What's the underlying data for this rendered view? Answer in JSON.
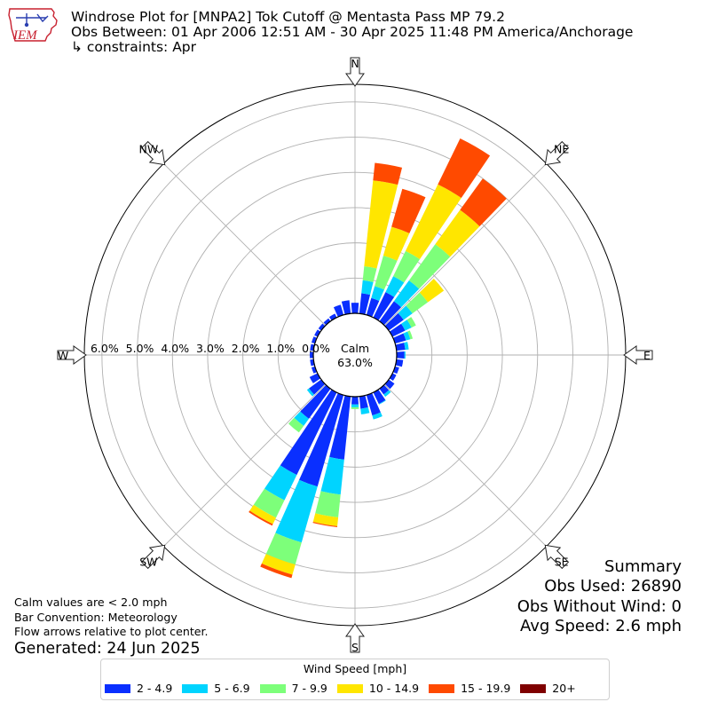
{
  "header": {
    "title": "Windrose Plot for [MNPA2] Tok Cutoff @ Mentasta Pass MP 79.2",
    "obs_between": "Obs Between: 01 Apr 2006 12:51 AM - 30 Apr 2025 11:48 PM America/Anchorage",
    "constraints": "↳ constraints: Apr"
  },
  "logo": {
    "text": "IEM",
    "icon": "iowa-state-map-logo"
  },
  "notes": {
    "line1": "Calm values are < 2.0 mph",
    "line2": "Bar Convention: Meteorology",
    "line3": "Flow arrows relative to plot center.",
    "generated": "Generated: 24 Jun 2025"
  },
  "summary": {
    "heading": "Summary",
    "obs_used": "Obs Used: 26890",
    "obs_without_wind": "Obs Without Wind: 0",
    "avg_speed": "Avg Speed: 2.6 mph"
  },
  "legend": {
    "title": "Wind Speed [mph]",
    "items": [
      {
        "label": "2 - 4.9",
        "color": "#0a2fff"
      },
      {
        "label": "5 - 6.9",
        "color": "#00d4ff"
      },
      {
        "label": "7 - 9.9",
        "color": "#7dff7a"
      },
      {
        "label": "10 - 14.9",
        "color": "#ffe600"
      },
      {
        "label": "15 - 19.9",
        "color": "#ff4a00"
      },
      {
        "label": "20+",
        "color": "#7f0000"
      }
    ]
  },
  "chart_data": {
    "type": "windrose",
    "title": "Windrose Plot for [MNPA2] Tok Cutoff @ Mentasta Pass MP 79.2",
    "calm_label": "Calm",
    "calm_value": "63.0%",
    "radial_unit": "%",
    "radial_ticks": [
      0,
      1,
      2,
      3,
      4,
      5,
      6
    ],
    "radial_tick_labels": [
      "0.0%",
      "1.0%",
      "2.0%",
      "3.0%",
      "4.0%",
      "5.0%",
      "6.0%"
    ],
    "rmax": 6.5,
    "direction_labels": [
      {
        "label": "N",
        "deg": 0
      },
      {
        "label": "NE",
        "deg": 45
      },
      {
        "label": "E",
        "deg": 90
      },
      {
        "label": "SE",
        "deg": 135
      },
      {
        "label": "S",
        "deg": 180
      },
      {
        "label": "SW",
        "deg": 225
      },
      {
        "label": "W",
        "deg": 270
      },
      {
        "label": "NW",
        "deg": 315
      }
    ],
    "speed_bins": [
      "2 - 4.9",
      "5 - 6.9",
      "7 - 9.9",
      "10 - 14.9",
      "15 - 19.9",
      "20+"
    ],
    "bin_colors": [
      "#0a2fff",
      "#00d4ff",
      "#7dff7a",
      "#ffe600",
      "#ff4a00",
      "#7f0000"
    ],
    "directions_deg": [
      0,
      10,
      20,
      30,
      40,
      50,
      60,
      70,
      80,
      90,
      100,
      110,
      120,
      130,
      140,
      150,
      160,
      170,
      180,
      190,
      200,
      210,
      220,
      230,
      240,
      250,
      260,
      270,
      280,
      290,
      300,
      310,
      320,
      330,
      340,
      350
    ],
    "cumulative_percent": [
      [
        0.3,
        0.3,
        0.3,
        0.3,
        0.3,
        0.3
      ],
      [
        0.58,
        0.95,
        1.35,
        3.8,
        4.3,
        4.3
      ],
      [
        0.5,
        0.85,
        1.75,
        2.6,
        3.72,
        3.72
      ],
      [
        0.8,
        1.3,
        2.1,
        4.2,
        5.65,
        5.65
      ],
      [
        0.7,
        1.43,
        2.7,
        3.9,
        5.0,
        5.0
      ],
      [
        0.52,
        0.83,
        1.37,
        1.93,
        1.93,
        1.93
      ],
      [
        0.4,
        0.6,
        0.74,
        0.74,
        0.74,
        0.74
      ],
      [
        0.32,
        0.45,
        0.52,
        0.52,
        0.52,
        0.52
      ],
      [
        0.25,
        0.35,
        0.35,
        0.35,
        0.35,
        0.35
      ],
      [
        0.22,
        0.25,
        0.25,
        0.25,
        0.25,
        0.25
      ],
      [
        0.19,
        0.19,
        0.19,
        0.19,
        0.19,
        0.19
      ],
      [
        0.12,
        0.12,
        0.12,
        0.12,
        0.12,
        0.12
      ],
      [
        0.12,
        0.12,
        0.12,
        0.12,
        0.12,
        0.12
      ],
      [
        0.2,
        0.2,
        0.2,
        0.2,
        0.2,
        0.2
      ],
      [
        0.2,
        0.28,
        0.28,
        0.28,
        0.28,
        0.28
      ],
      [
        0.36,
        0.38,
        0.38,
        0.38,
        0.38,
        0.38
      ],
      [
        0.6,
        0.72,
        0.72,
        0.72,
        0.72,
        0.72
      ],
      [
        0.35,
        0.51,
        0.51,
        0.51,
        0.51,
        0.51
      ],
      [
        0.22,
        0.3,
        0.35,
        0.35,
        0.35,
        0.35
      ],
      [
        1.8,
        2.8,
        3.45,
        3.7,
        3.73,
        3.73
      ],
      [
        2.7,
        4.35,
        5.0,
        5.3,
        5.4,
        5.4
      ],
      [
        2.6,
        3.4,
        3.95,
        4.15,
        4.2,
        4.2
      ],
      [
        1.05,
        1.3,
        1.53,
        1.53,
        1.53,
        1.53
      ],
      [
        0.43,
        0.5,
        0.5,
        0.5,
        0.5,
        0.5
      ],
      [
        0.25,
        0.25,
        0.25,
        0.25,
        0.25,
        0.25
      ],
      [
        0.1,
        0.1,
        0.1,
        0.1,
        0.1,
        0.1
      ],
      [
        0.1,
        0.1,
        0.1,
        0.1,
        0.1,
        0.1
      ],
      [
        0.1,
        0.1,
        0.1,
        0.1,
        0.1,
        0.1
      ],
      [
        0.1,
        0.1,
        0.1,
        0.1,
        0.1,
        0.1
      ],
      [
        0.1,
        0.1,
        0.1,
        0.1,
        0.1,
        0.1
      ],
      [
        0.1,
        0.1,
        0.1,
        0.1,
        0.1,
        0.1
      ],
      [
        0.1,
        0.1,
        0.1,
        0.1,
        0.1,
        0.1
      ],
      [
        0.1,
        0.1,
        0.1,
        0.1,
        0.1,
        0.1
      ],
      [
        0.12,
        0.12,
        0.12,
        0.12,
        0.12,
        0.12
      ],
      [
        0.3,
        0.3,
        0.3,
        0.3,
        0.3,
        0.3
      ],
      [
        0.38,
        0.38,
        0.38,
        0.38,
        0.38,
        0.38
      ]
    ]
  }
}
